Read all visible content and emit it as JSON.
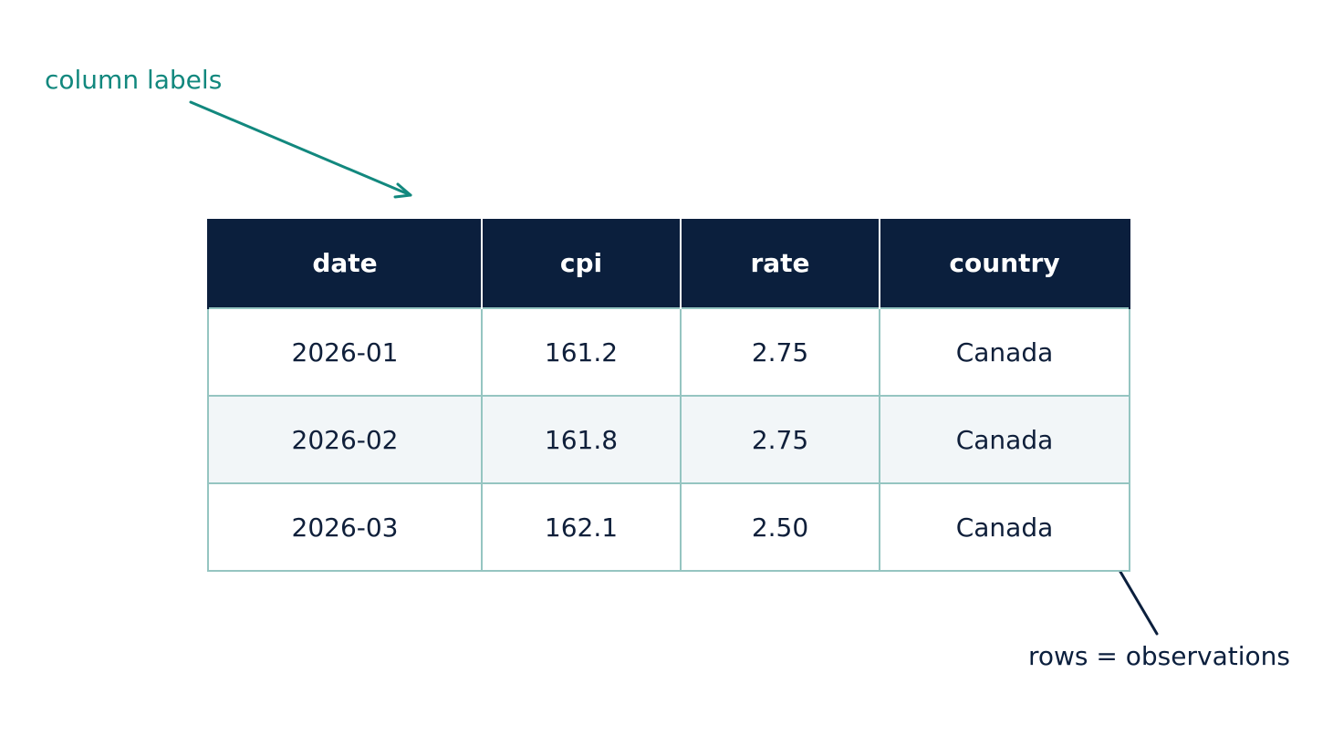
{
  "annotations": {
    "column_labels": "column labels",
    "rows_observations": "rows = observations"
  },
  "colors": {
    "header_bg": "#0b1f3d",
    "accent_teal": "#12887e",
    "grid_line": "#95c5c1",
    "alt_row_bg": "#f2f6f8",
    "text_dark": "#0f1f3a"
  },
  "table": {
    "headers": [
      "date",
      "cpi",
      "rate",
      "country"
    ],
    "rows": [
      [
        "2026-01",
        "161.2",
        "2.75",
        "Canada"
      ],
      [
        "2026-02",
        "161.8",
        "2.75",
        "Canada"
      ],
      [
        "2026-03",
        "162.1",
        "2.50",
        "Canada"
      ]
    ]
  }
}
